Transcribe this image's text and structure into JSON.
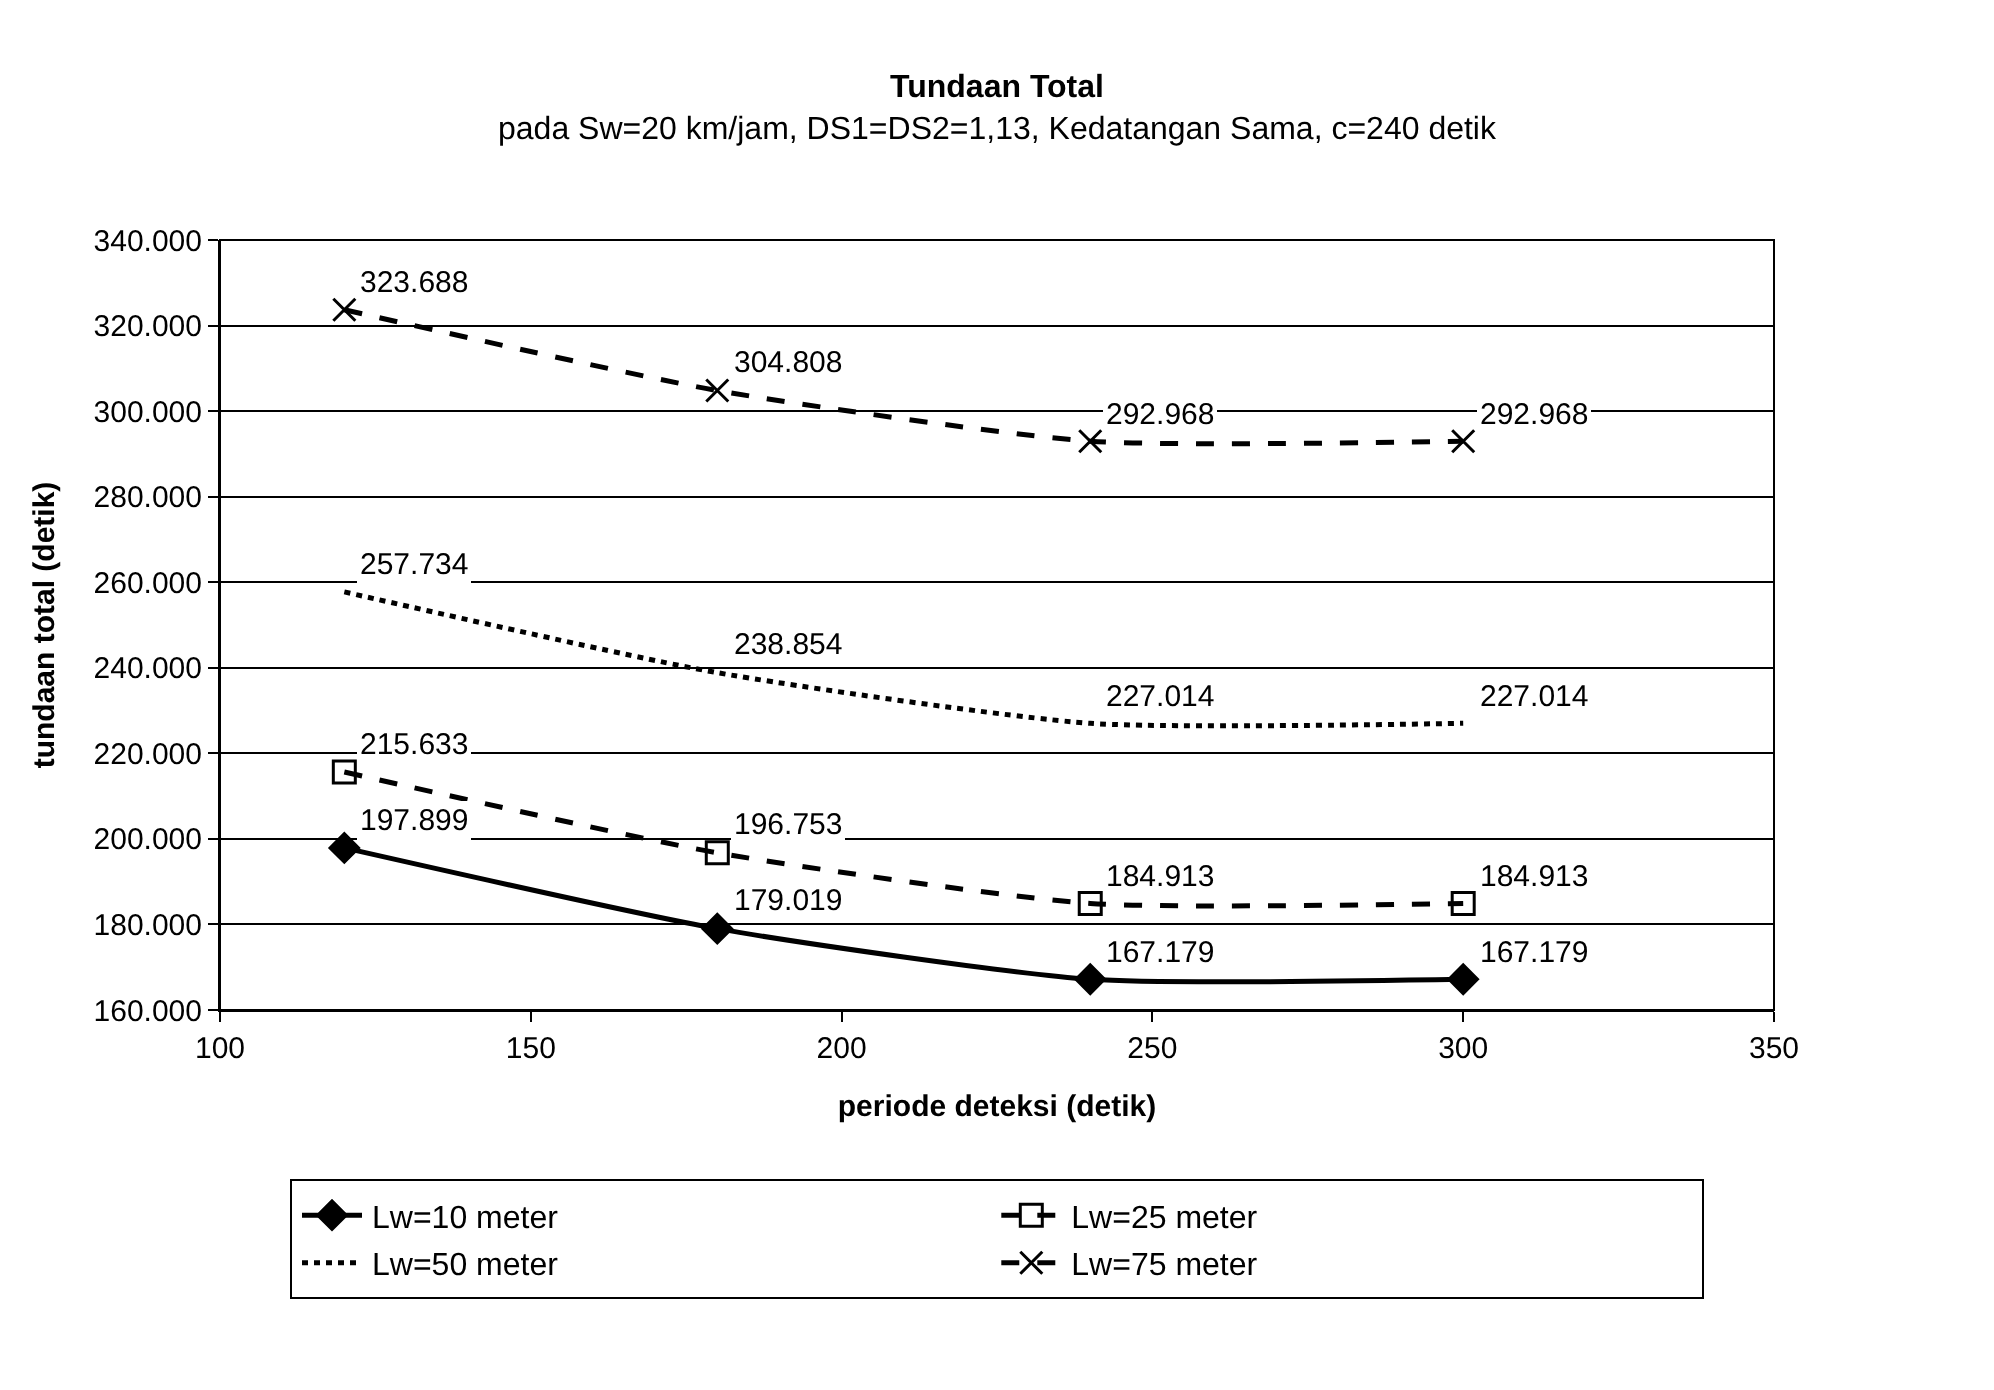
{
  "chart_data": {
    "type": "line",
    "title": "Tundaan Total",
    "subtitle": "pada Sw=20 km/jam, DS1=DS2=1,13, Kedatangan Sama, c=240 detik",
    "xlabel": "periode deteksi (detik)",
    "ylabel": "tundaan total (detik)",
    "x": [
      120,
      180,
      240,
      300
    ],
    "series": [
      {
        "name": "Lw=10 meter",
        "color": "#000000",
        "marker": "diamond",
        "line_style": "solid",
        "values": [
          197899,
          179019,
          167179,
          167179
        ],
        "value_labels": [
          "197.899",
          "179.019",
          "167.179",
          "167.179"
        ]
      },
      {
        "name": "Lw=25 meter",
        "color": "#000000",
        "marker": "square",
        "line_style": "dashed",
        "values": [
          215633,
          196753,
          184913,
          184913
        ],
        "value_labels": [
          "215.633",
          "196.753",
          "184.913",
          "184.913"
        ]
      },
      {
        "name": "Lw=50 meter",
        "color": "#000000",
        "marker": "none",
        "line_style": "dotted",
        "values": [
          257734,
          238854,
          227014,
          227014
        ],
        "value_labels": [
          "257.734",
          "238.854",
          "227.014",
          "227.014"
        ]
      },
      {
        "name": "Lw=75 meter",
        "color": "#000000",
        "marker": "cross",
        "line_style": "dashed",
        "values": [
          323688,
          304808,
          292968,
          292968
        ],
        "value_labels": [
          "323.688",
          "304.808",
          "292.968",
          "292.968"
        ]
      }
    ],
    "xlim": [
      100,
      350
    ],
    "xticks": [
      100,
      150,
      200,
      250,
      300,
      350
    ],
    "ylim": [
      160000,
      340000
    ],
    "yticks": [
      {
        "value": 160000,
        "label": "160.000"
      },
      {
        "value": 180000,
        "label": "180.000"
      },
      {
        "value": 200000,
        "label": "200.000"
      },
      {
        "value": 220000,
        "label": "220.000"
      },
      {
        "value": 240000,
        "label": "240.000"
      },
      {
        "value": 260000,
        "label": "260.000"
      },
      {
        "value": 280000,
        "label": "280.000"
      },
      {
        "value": 300000,
        "label": "300.000"
      },
      {
        "value": 320000,
        "label": "320.000"
      },
      {
        "value": 340000,
        "label": "340.000"
      }
    ],
    "grid": "y",
    "legend": "bottom"
  }
}
